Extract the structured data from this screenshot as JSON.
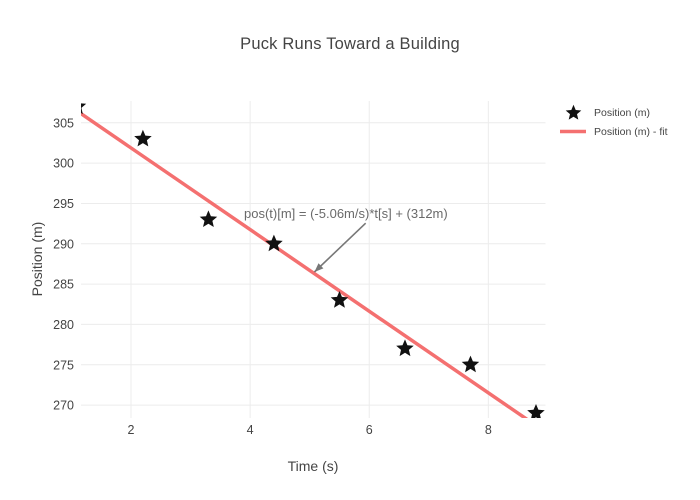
{
  "colors": {
    "text": "#444444",
    "grid": "#ececec",
    "marker": "#111111",
    "fit_line": "#f47070",
    "annotation_text": "#6a6a6a",
    "arrow": "#777777"
  },
  "chart_data": {
    "type": "scatter",
    "title": "Puck Runs Toward a Building",
    "xlabel": "Time (s)",
    "ylabel": "Position (m)",
    "x": [
      1.1,
      2.2,
      3.3,
      4.4,
      5.5,
      6.6,
      7.7,
      8.8
    ],
    "series": [
      {
        "name": "Position (m)",
        "mode": "markers",
        "marker": "star",
        "color": "#111111",
        "y": [
          307,
          303,
          293,
          290,
          283,
          277,
          275,
          269
        ]
      },
      {
        "name": "Position (m) - fit",
        "mode": "line",
        "color": "#f47070",
        "fit": {
          "slope": -5.06,
          "intercept": 312
        }
      }
    ],
    "xticks": [
      2,
      4,
      6,
      8
    ],
    "yticks": [
      270,
      275,
      280,
      285,
      290,
      295,
      300,
      305
    ],
    "xlim": [
      1.16,
      8.96
    ],
    "ylim": [
      268.4,
      307.7
    ],
    "grid": true,
    "legend_position": "top-right-outside",
    "annotation": {
      "text": "pos(t)[m] = (-5.06m/s)*t[s] + (312m)",
      "arrow_from": [
        5.94,
        292.55
      ],
      "arrow_to": [
        5.08,
        286.5
      ]
    }
  }
}
